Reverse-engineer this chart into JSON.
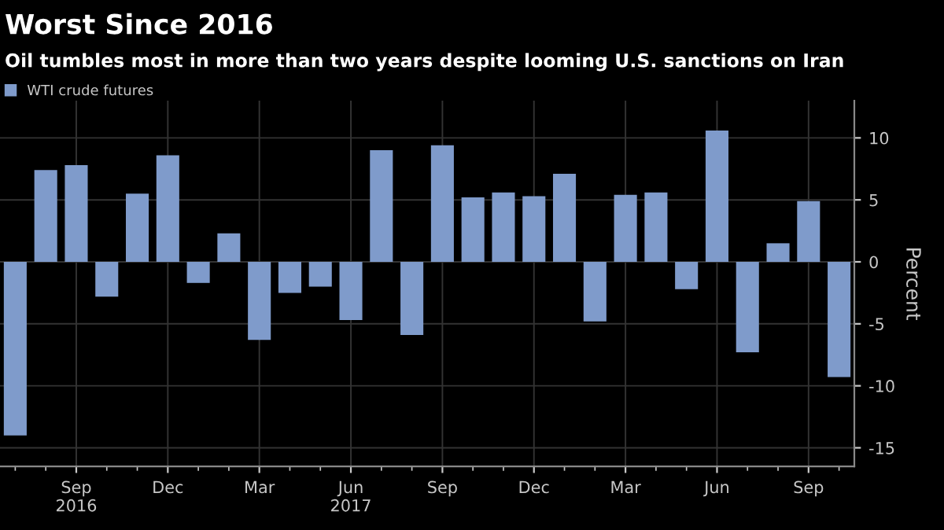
{
  "chart_data": {
    "type": "bar",
    "title": "Worst Since 2016",
    "subtitle": "Oil tumbles most in more than two years despite looming U.S. sanctions on Iran",
    "ylabel": "Percent",
    "categories": [
      null,
      null,
      "Sep\n2016",
      null,
      null,
      "Dec",
      null,
      null,
      "Mar",
      null,
      null,
      "Jun\n2017",
      null,
      null,
      "Sep",
      null,
      null,
      "Dec",
      null,
      null,
      "Mar",
      null,
      null,
      "Jun",
      null,
      null,
      "Sep",
      null
    ],
    "series": [
      {
        "name": "WTI crude futures",
        "color": "#7f9bcb",
        "values": [
          -14,
          7.4,
          7.8,
          -2.8,
          5.5,
          8.6,
          -1.7,
          2.3,
          -6.3,
          -2.5,
          -2.0,
          -4.7,
          9.0,
          -5.9,
          9.4,
          5.2,
          5.6,
          5.3,
          7.1,
          -4.8,
          5.4,
          5.6,
          -2.2,
          10.6,
          -7.3,
          1.5,
          4.9,
          -9.3
        ]
      }
    ],
    "ylim": [
      -16.5,
      13
    ],
    "yticks": [
      {
        "value": -15,
        "label": "-15"
      },
      {
        "value": -10,
        "label": "-10"
      },
      {
        "value": -5,
        "label": "-5"
      },
      0,
      5,
      10
    ],
    "grid": true,
    "legend": "top left"
  }
}
